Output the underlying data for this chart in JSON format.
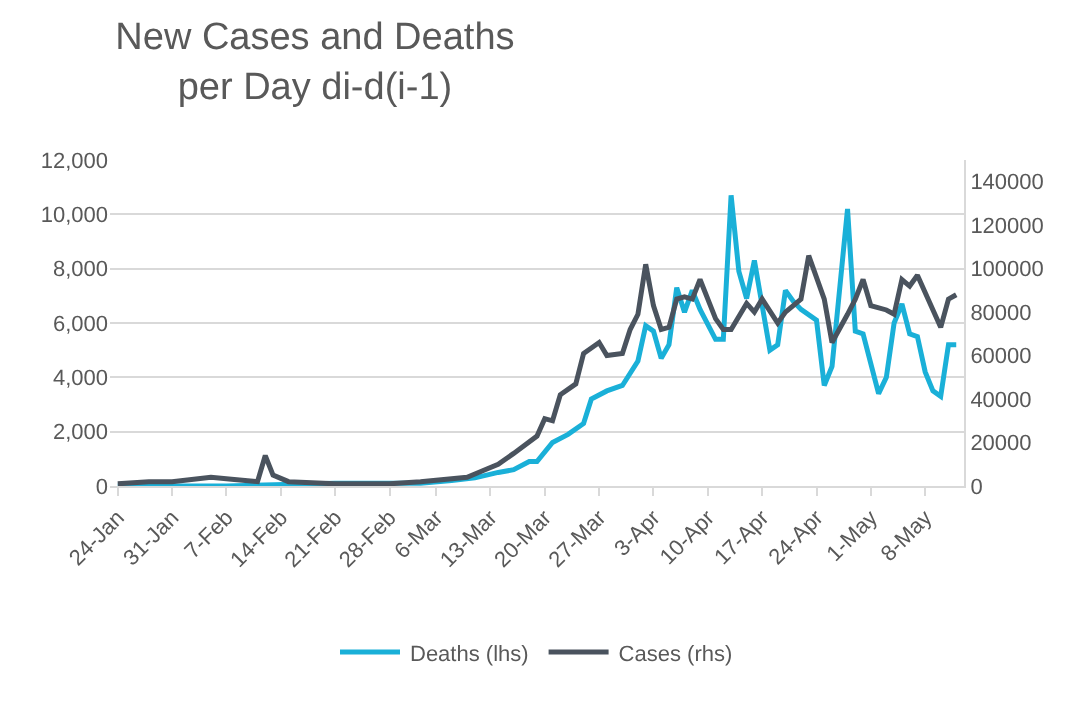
{
  "chart_data": {
    "type": "line",
    "title": "New Cases and Deaths per Day di-d(i-1)",
    "xlim": [
      "--01-23",
      "--05-13"
    ],
    "xticks": [
      {
        "value": "--01-24",
        "label": "24-Jan"
      },
      {
        "value": "--01-31",
        "label": "31-Jan"
      },
      {
        "value": "--02-07",
        "label": "7-Feb"
      },
      {
        "value": "--02-14",
        "label": "14-Feb"
      },
      {
        "value": "--02-21",
        "label": "21-Feb"
      },
      {
        "value": "--02-28",
        "label": "28-Feb"
      },
      {
        "value": "--03-06",
        "label": "6-Mar"
      },
      {
        "value": "--03-13",
        "label": "13-Mar"
      },
      {
        "value": "--03-20",
        "label": "20-Mar"
      },
      {
        "value": "--03-27",
        "label": "27-Mar"
      },
      {
        "value": "--04-03",
        "label": "3-Apr"
      },
      {
        "value": "--04-10",
        "label": "10-Apr"
      },
      {
        "value": "--04-17",
        "label": "17-Apr"
      },
      {
        "value": "--04-24",
        "label": "24-Apr"
      },
      {
        "value": "--05-01",
        "label": "1-May"
      },
      {
        "value": "--05-08",
        "label": "8-May"
      }
    ],
    "ylim": [
      0,
      12000
    ],
    "yticks": [
      0,
      {
        "value": 2000,
        "label": "2,000"
      },
      {
        "value": 4000,
        "label": "4,000"
      },
      {
        "value": 6000,
        "label": "6,000"
      },
      {
        "value": 8000,
        "label": "8,000"
      },
      {
        "value": 10000,
        "label": "10,000"
      },
      {
        "value": 12000,
        "label": "12,000"
      }
    ],
    "y2lim": [
      0,
      150000
    ],
    "y2ticks": [
      0,
      20000,
      40000,
      60000,
      80000,
      100000,
      120000,
      140000
    ],
    "grid": "y",
    "legend": "bottom",
    "line_style": "solid",
    "series": [
      {
        "name": "Deaths (lhs)",
        "color": "#1ab0d8",
        "x": [
          "--01-24",
          "--02-07",
          "--02-21",
          "--03-04",
          "--03-08",
          "--03-11",
          "--03-14",
          "--03-16",
          "--03-18",
          "--03-19",
          "--03-21",
          "--03-23",
          "--03-25",
          "--03-26",
          "--03-28",
          "--03-30",
          "--04-01",
          "--04-02",
          "--04-03",
          "--04-04",
          "--04-05",
          "--04-06",
          "--04-07",
          "--04-08",
          "--04-09",
          "--04-11",
          "--04-12",
          "--04-13",
          "--04-14",
          "--04-15",
          "--04-16",
          "--04-18",
          "--04-19",
          "--04-20",
          "--04-21",
          "--04-22",
          "--04-24",
          "--04-25",
          "--04-26",
          "--04-28",
          "--04-29",
          "--04-30",
          "--05-02",
          "--05-03",
          "--05-04",
          "--05-05",
          "--05-06",
          "--05-07",
          "--05-08",
          "--05-09",
          "--05-10",
          "--05-11",
          "--05-12"
        ],
        "values": [
          0,
          0,
          100,
          100,
          200,
          300,
          500,
          600,
          900,
          900,
          1600,
          1900,
          2300,
          3200,
          3500,
          3700,
          4600,
          5900,
          5700,
          4700,
          5200,
          7300,
          6400,
          7200,
          6500,
          5400,
          5400,
          10700,
          7900,
          6900,
          8300,
          5000,
          5200,
          7200,
          6800,
          6500,
          6100,
          3700,
          4400,
          10200,
          5700,
          5600,
          3400,
          4000,
          6000,
          6700,
          5600,
          5500,
          4200,
          3500,
          3300,
          5200,
          5200
        ]
      },
      {
        "name": "Cases (rhs)",
        "color": "#4a535e",
        "axis": "y2",
        "x": [
          "--01-24",
          "--01-28",
          "--01-31",
          "--02-05",
          "--02-08",
          "--02-11",
          "--02-12",
          "--02-13",
          "--02-15",
          "--02-21",
          "--02-28",
          "--03-04",
          "--03-10",
          "--03-12",
          "--03-14",
          "--03-16",
          "--03-19",
          "--03-20",
          "--03-21",
          "--03-22",
          "--03-24",
          "--03-25",
          "--03-27",
          "--03-28",
          "--03-30",
          "--03-31",
          "--04-01",
          "--04-02",
          "--04-03",
          "--04-04",
          "--04-05",
          "--04-06",
          "--04-07",
          "--04-08",
          "--04-09",
          "--04-11",
          "--04-12",
          "--04-13",
          "--04-15",
          "--04-16",
          "--04-17",
          "--04-19",
          "--04-20",
          "--04-22",
          "--04-23",
          "--04-25",
          "--04-26",
          "--04-28",
          "--04-29",
          "--04-30",
          "--05-01",
          "--05-03",
          "--05-04",
          "--05-05",
          "--05-06",
          "--05-07",
          "--05-10",
          "--05-11",
          "--05-12"
        ],
        "values": [
          1000,
          2000,
          2000,
          4000,
          3000,
          2000,
          14000,
          5000,
          2000,
          1000,
          1000,
          2000,
          4000,
          7000,
          10000,
          15000,
          23000,
          31000,
          30000,
          42000,
          47000,
          61000,
          66000,
          60000,
          61000,
          72000,
          79000,
          102000,
          83000,
          72000,
          73000,
          86000,
          87000,
          86000,
          95000,
          77000,
          72000,
          72000,
          84000,
          80000,
          86000,
          75000,
          80000,
          86000,
          106000,
          86000,
          66000,
          79000,
          86000,
          95000,
          83000,
          81000,
          79000,
          95000,
          92000,
          97000,
          73000,
          86000,
          88000
        ]
      }
    ]
  }
}
